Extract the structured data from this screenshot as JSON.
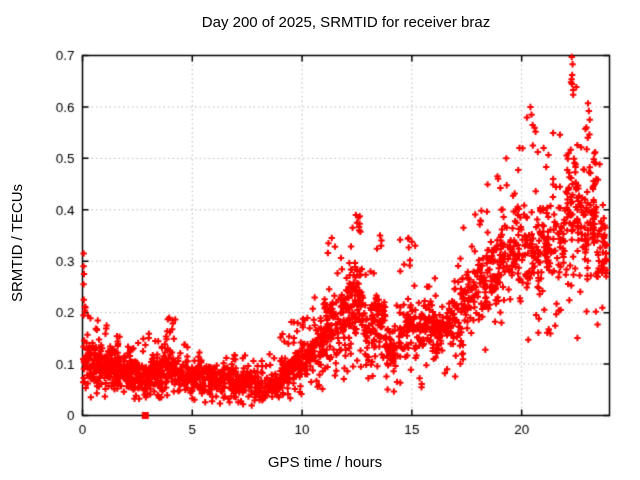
{
  "chart_data": {
    "type": "scatter",
    "title": "Day 200 of 2025, SRMTID for receiver braz",
    "xlabel": "GPS time / hours",
    "ylabel": "SRMTID / TECUs",
    "xlim": [
      0,
      24
    ],
    "ylim": [
      0,
      0.7
    ],
    "xticks": [
      0,
      5,
      10,
      15,
      20
    ],
    "yticks": [
      0,
      0.1,
      0.2,
      0.3,
      0.4,
      0.5,
      0.6,
      0.7
    ],
    "grid": true,
    "legend": "none",
    "marker": "plus",
    "marker_color": "#ff0000",
    "grid_color": "#bbbbbb",
    "border_color": "#000000",
    "background": "#ffffff",
    "seed": 42,
    "series_name": "SRMTID",
    "bands": [
      {
        "x0": 0.02,
        "x1": 0.3,
        "n": 40,
        "core": [
          0.05,
          0.17
        ],
        "tail": [
          0.04,
          0.3
        ],
        "tp": 0.25
      },
      {
        "x0": 0.3,
        "x1": 1.0,
        "n": 85,
        "core": [
          0.05,
          0.14
        ],
        "tail": [
          0.03,
          0.19
        ],
        "tp": 0.25
      },
      {
        "x0": 1.0,
        "x1": 1.5,
        "n": 70,
        "core": [
          0.05,
          0.13
        ],
        "tail": [
          0.03,
          0.17
        ],
        "tp": 0.25
      },
      {
        "x0": 1.5,
        "x1": 2.0,
        "n": 70,
        "core": [
          0.05,
          0.12
        ],
        "tail": [
          0.03,
          0.16
        ],
        "tp": 0.25
      },
      {
        "x0": 2.0,
        "x1": 2.5,
        "n": 65,
        "core": [
          0.045,
          0.11
        ],
        "tail": [
          0.03,
          0.14
        ],
        "tp": 0.25
      },
      {
        "x0": 2.5,
        "x1": 3.0,
        "n": 65,
        "core": [
          0.045,
          0.11
        ],
        "tail": [
          0.03,
          0.15
        ],
        "tp": 0.25
      },
      {
        "x0": 3.0,
        "x1": 3.5,
        "n": 65,
        "core": [
          0.05,
          0.12
        ],
        "tail": [
          0.03,
          0.16
        ],
        "tp": 0.25
      },
      {
        "x0": 3.5,
        "x1": 4.3,
        "n": 90,
        "core": [
          0.05,
          0.13
        ],
        "tail": [
          0.03,
          0.19
        ],
        "tp": 0.25
      },
      {
        "x0": 4.3,
        "x1": 5.0,
        "n": 70,
        "core": [
          0.04,
          0.11
        ],
        "tail": [
          0.03,
          0.14
        ],
        "tp": 0.25
      },
      {
        "x0": 5.0,
        "x1": 5.5,
        "n": 60,
        "core": [
          0.04,
          0.11
        ],
        "tail": [
          0.025,
          0.145
        ],
        "tp": 0.25
      },
      {
        "x0": 5.5,
        "x1": 6.5,
        "n": 95,
        "core": [
          0.035,
          0.1
        ],
        "tail": [
          0.02,
          0.13
        ],
        "tp": 0.25
      },
      {
        "x0": 6.5,
        "x1": 7.5,
        "n": 90,
        "core": [
          0.03,
          0.1
        ],
        "tail": [
          0.02,
          0.12
        ],
        "tp": 0.25
      },
      {
        "x0": 7.5,
        "x1": 8.5,
        "n": 85,
        "core": [
          0.025,
          0.09
        ],
        "tail": [
          0.015,
          0.115
        ],
        "tp": 0.25
      },
      {
        "x0": 8.5,
        "x1": 9.0,
        "n": 50,
        "core": [
          0.03,
          0.09
        ],
        "tail": [
          0.02,
          0.12
        ],
        "tp": 0.25
      },
      {
        "x0": 9.0,
        "x1": 9.5,
        "n": 55,
        "core": [
          0.05,
          0.12
        ],
        "tail": [
          0.03,
          0.16
        ],
        "tp": 0.25
      },
      {
        "x0": 9.5,
        "x1": 10.0,
        "n": 55,
        "core": [
          0.06,
          0.14
        ],
        "tail": [
          0.04,
          0.185
        ],
        "tp": 0.25
      },
      {
        "x0": 10.0,
        "x1": 10.5,
        "n": 55,
        "core": [
          0.07,
          0.16
        ],
        "tail": [
          0.05,
          0.21
        ],
        "tp": 0.25
      },
      {
        "x0": 10.5,
        "x1": 11.0,
        "n": 55,
        "core": [
          0.08,
          0.2
        ],
        "tail": [
          0.05,
          0.28
        ],
        "tp": 0.25
      },
      {
        "x0": 11.0,
        "x1": 11.5,
        "n": 60,
        "core": [
          0.1,
          0.25
        ],
        "tail": [
          0.06,
          0.33
        ],
        "tp": 0.25
      },
      {
        "x0": 11.5,
        "x1": 12.0,
        "n": 55,
        "core": [
          0.1,
          0.24
        ],
        "tail": [
          0.06,
          0.31
        ],
        "tp": 0.25
      },
      {
        "x0": 12.0,
        "x1": 12.4,
        "n": 50,
        "core": [
          0.12,
          0.3
        ],
        "tail": [
          0.08,
          0.375
        ],
        "tp": 0.3
      },
      {
        "x0": 12.4,
        "x1": 12.8,
        "n": 55,
        "core": [
          0.12,
          0.32
        ],
        "tail": [
          0.06,
          0.39
        ],
        "tp": 0.3
      },
      {
        "x0": 12.8,
        "x1": 13.3,
        "n": 50,
        "core": [
          0.1,
          0.24
        ],
        "tail": [
          0.05,
          0.3
        ],
        "tp": 0.25
      },
      {
        "x0": 13.3,
        "x1": 13.8,
        "n": 55,
        "core": [
          0.1,
          0.28
        ],
        "tail": [
          0.06,
          0.35
        ],
        "tp": 0.25
      },
      {
        "x0": 13.8,
        "x1": 14.4,
        "n": 50,
        "core": [
          0.07,
          0.18
        ],
        "tail": [
          0.045,
          0.25
        ],
        "tp": 0.25
      },
      {
        "x0": 14.4,
        "x1": 15.2,
        "n": 70,
        "core": [
          0.1,
          0.24
        ],
        "tail": [
          0.06,
          0.345
        ],
        "tp": 0.25
      },
      {
        "x0": 15.2,
        "x1": 16.0,
        "n": 70,
        "core": [
          0.12,
          0.22
        ],
        "tail": [
          0.05,
          0.28
        ],
        "tp": 0.25
      },
      {
        "x0": 16.0,
        "x1": 16.6,
        "n": 55,
        "core": [
          0.12,
          0.22
        ],
        "tail": [
          0.06,
          0.27
        ],
        "tp": 0.25
      },
      {
        "x0": 16.6,
        "x1": 17.2,
        "n": 55,
        "core": [
          0.13,
          0.24
        ],
        "tail": [
          0.07,
          0.31
        ],
        "tp": 0.25
      },
      {
        "x0": 17.2,
        "x1": 17.8,
        "n": 55,
        "core": [
          0.15,
          0.28
        ],
        "tail": [
          0.09,
          0.37
        ],
        "tp": 0.25
      },
      {
        "x0": 17.8,
        "x1": 18.4,
        "n": 55,
        "core": [
          0.18,
          0.32
        ],
        "tail": [
          0.12,
          0.42
        ],
        "tp": 0.25
      },
      {
        "x0": 18.4,
        "x1": 19.0,
        "n": 55,
        "core": [
          0.2,
          0.36
        ],
        "tail": [
          0.13,
          0.47
        ],
        "tp": 0.25
      },
      {
        "x0": 19.0,
        "x1": 19.6,
        "n": 55,
        "core": [
          0.22,
          0.4
        ],
        "tail": [
          0.15,
          0.52
        ],
        "tp": 0.25
      },
      {
        "x0": 19.6,
        "x1": 20.2,
        "n": 55,
        "core": [
          0.24,
          0.44
        ],
        "tail": [
          0.15,
          0.52
        ],
        "tp": 0.3
      },
      {
        "x0": 20.2,
        "x1": 20.8,
        "n": 55,
        "core": [
          0.22,
          0.4
        ],
        "tail": [
          0.12,
          0.58
        ],
        "tp": 0.3
      },
      {
        "x0": 20.8,
        "x1": 21.4,
        "n": 55,
        "core": [
          0.24,
          0.42
        ],
        "tail": [
          0.14,
          0.52
        ],
        "tp": 0.25
      },
      {
        "x0": 21.4,
        "x1": 22.0,
        "n": 50,
        "core": [
          0.25,
          0.45
        ],
        "tail": [
          0.15,
          0.55
        ],
        "tp": 0.25
      },
      {
        "x0": 22.0,
        "x1": 22.5,
        "n": 60,
        "core": [
          0.3,
          0.55
        ],
        "tail": [
          0.2,
          0.66
        ],
        "tp": 0.35
      },
      {
        "x0": 22.5,
        "x1": 23.0,
        "n": 55,
        "core": [
          0.25,
          0.5
        ],
        "tail": [
          0.15,
          0.58
        ],
        "tp": 0.3
      },
      {
        "x0": 23.0,
        "x1": 23.4,
        "n": 55,
        "core": [
          0.28,
          0.52
        ],
        "tail": [
          0.18,
          0.61
        ],
        "tp": 0.3
      },
      {
        "x0": 23.4,
        "x1": 23.9,
        "n": 45,
        "core": [
          0.25,
          0.38
        ],
        "tail": [
          0.17,
          0.5
        ],
        "tp": 0.3
      }
    ],
    "outlier_points": [
      [
        0.05,
        0.315
      ],
      [
        0.05,
        0.29
      ],
      [
        0.07,
        0.275
      ],
      [
        0.05,
        0.255
      ],
      [
        0.06,
        0.225
      ],
      [
        0.05,
        0.195
      ],
      [
        1.1,
        0.175
      ],
      [
        3.95,
        0.19
      ],
      [
        4.1,
        0.185
      ],
      [
        9.8,
        0.18
      ],
      [
        11.2,
        0.335
      ],
      [
        11.35,
        0.345
      ],
      [
        12.3,
        0.365
      ],
      [
        12.45,
        0.39
      ],
      [
        12.5,
        0.375
      ],
      [
        12.6,
        0.36
      ],
      [
        13.55,
        0.35
      ],
      [
        13.6,
        0.33
      ],
      [
        14.85,
        0.345
      ],
      [
        15.15,
        0.33
      ],
      [
        17.35,
        0.365
      ],
      [
        18.9,
        0.465
      ],
      [
        19.3,
        0.5
      ],
      [
        19.9,
        0.52
      ],
      [
        20.4,
        0.6
      ],
      [
        20.45,
        0.585
      ],
      [
        20.5,
        0.565
      ],
      [
        21.0,
        0.52
      ],
      [
        22.28,
        0.697
      ],
      [
        22.32,
        0.683
      ],
      [
        22.3,
        0.662
      ],
      [
        22.35,
        0.633
      ],
      [
        22.25,
        0.648
      ],
      [
        23.02,
        0.607
      ],
      [
        23.06,
        0.592
      ],
      [
        23.1,
        0.575
      ],
      [
        22.95,
        0.56
      ],
      [
        23.75,
        0.345
      ],
      [
        23.8,
        0.33
      ],
      [
        23.85,
        0.3
      ]
    ],
    "special_points": [
      {
        "x": 2.86,
        "y": 0,
        "marker": "square"
      }
    ]
  }
}
